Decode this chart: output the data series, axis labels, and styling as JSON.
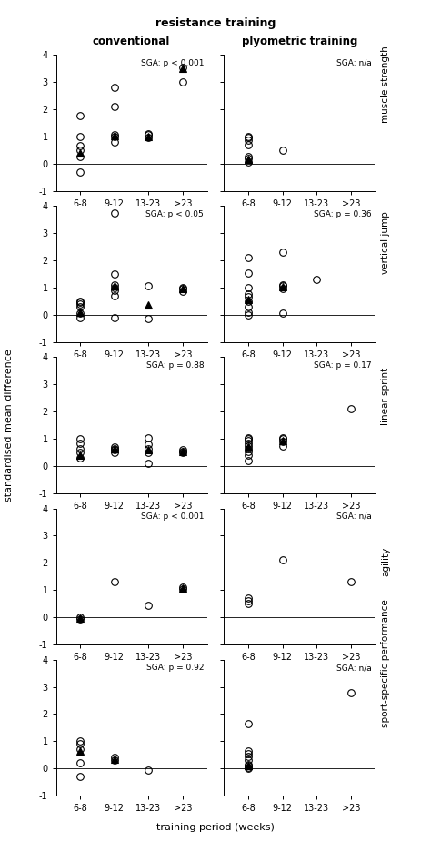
{
  "title_top": "resistance training",
  "col_labels": [
    "conventional",
    "plyometric training"
  ],
  "xlabel": "training period (weeks)",
  "ylabel": "standardised mean difference",
  "x_ticks": [
    "6-8",
    "9-12",
    "13-23",
    ">23"
  ],
  "x_positions": [
    1,
    2,
    3,
    4
  ],
  "ylim": [
    -1,
    4
  ],
  "yticks": [
    -1,
    0,
    1,
    2,
    3,
    4
  ],
  "sga_labels": [
    [
      "SGA: p < 0.001",
      "SGA: n/a"
    ],
    [
      "SGA: p < 0.05",
      "SGA: p = 0.36"
    ],
    [
      "SGA: p = 0.88",
      "SGA: p = 0.17"
    ],
    [
      "SGA: p < 0.001",
      "SGA: n/a"
    ],
    [
      "SGA: p = 0.92",
      "SGA: n/a"
    ]
  ],
  "row_labels": [
    "muscle strength",
    "vertical jump",
    "linear sprint",
    "agility",
    "sport-specific performance"
  ],
  "circles": {
    "muscle_strength_conv": {
      "6-8": [
        -0.3,
        0.25,
        0.5,
        0.65,
        1.0,
        1.75
      ],
      "9-12": [
        0.8,
        1.0,
        1.05,
        2.1,
        2.8
      ],
      "13-23": [
        0.95,
        1.05,
        1.1
      ],
      ">23": [
        3.0,
        3.55
      ]
    },
    "muscle_strength_plyo": {
      "6-8": [
        0.05,
        0.2,
        0.25,
        0.7,
        0.85,
        0.95,
        1.0
      ],
      "9-12": [
        0.5
      ],
      "13-23": [],
      ">23": []
    },
    "vertical_jump_conv": {
      "6-8": [
        -0.1,
        0.05,
        0.3,
        0.4,
        0.45,
        0.5
      ],
      "9-12": [
        -0.1,
        0.7,
        0.9,
        1.0,
        1.1,
        1.5,
        3.75
      ],
      "13-23": [
        -0.15,
        1.05
      ],
      ">23": [
        0.85,
        0.95,
        1.0
      ]
    },
    "vertical_jump_plyo": {
      "6-8": [
        0.0,
        0.1,
        0.3,
        0.5,
        0.65,
        0.75,
        1.0,
        1.55,
        2.1
      ],
      "9-12": [
        0.05,
        0.95,
        1.05,
        1.1,
        2.3
      ],
      "13-23": [
        1.3
      ],
      ">23": []
    },
    "linear_sprint_conv": {
      "6-8": [
        0.3,
        0.5,
        0.65,
        0.85,
        1.0
      ],
      "9-12": [
        0.5,
        0.6,
        0.65,
        0.7
      ],
      "13-23": [
        0.1,
        0.5,
        0.65,
        0.8,
        1.05
      ],
      ">23": [
        0.5,
        0.55,
        0.6
      ]
    },
    "linear_sprint_plyo": {
      "6-8": [
        0.2,
        0.4,
        0.55,
        0.65,
        0.75,
        0.85,
        0.95,
        1.0,
        1.05
      ],
      "9-12": [
        0.75,
        0.9,
        1.0,
        1.05
      ],
      "13-23": [],
      ">23": [
        2.1
      ]
    },
    "agility_conv": {
      "6-8": [
        -0.05,
        0.0
      ],
      "9-12": [
        1.3
      ],
      "13-23": [
        0.45
      ],
      ">23": [
        1.05,
        1.1
      ]
    },
    "agility_plyo": {
      "6-8": [
        0.5,
        0.6,
        0.7
      ],
      "9-12": [
        2.1
      ],
      "13-23": [],
      ">23": [
        1.3
      ]
    },
    "sport_conv": {
      "6-8": [
        -0.3,
        0.2,
        0.7,
        0.9,
        1.0
      ],
      "9-12": [
        0.3,
        0.4
      ],
      "13-23": [
        -0.05
      ],
      ">23": []
    },
    "sport_plyo": {
      "6-8": [
        0.0,
        0.05,
        0.1,
        0.15,
        0.3,
        0.45,
        0.55,
        0.65,
        1.65
      ],
      "9-12": [],
      "13-23": [],
      ">23": [
        2.8
      ]
    }
  },
  "triangles": {
    "muscle_strength_conv": {
      "6-8": [
        0.4
      ],
      "9-12": [
        1.02
      ],
      "13-23": [
        1.0
      ],
      ">23": [
        3.5
      ]
    },
    "muscle_strength_plyo": {
      "6-8": [
        0.15
      ],
      "9-12": [],
      "13-23": [],
      ">23": []
    },
    "vertical_jump_conv": {
      "6-8": [
        0.1
      ],
      "9-12": [
        1.05
      ],
      "13-23": [
        0.35
      ],
      ">23": [
        0.95
      ]
    },
    "vertical_jump_plyo": {
      "6-8": [
        0.55
      ],
      "9-12": [
        1.02
      ],
      "13-23": [],
      ">23": []
    },
    "linear_sprint_conv": {
      "6-8": [
        0.4
      ],
      "9-12": [
        0.62
      ],
      "13-23": [
        0.6
      ],
      ">23": [
        0.52
      ]
    },
    "linear_sprint_plyo": {
      "6-8": [
        0.7
      ],
      "9-12": [
        0.95
      ],
      "13-23": [],
      ">23": []
    },
    "agility_conv": {
      "6-8": [
        -0.02
      ],
      "9-12": [],
      "13-23": [],
      ">23": [
        1.08
      ]
    },
    "agility_plyo": {
      "6-8": [],
      "9-12": [],
      "13-23": [],
      ">23": []
    },
    "sport_conv": {
      "6-8": [
        0.65
      ],
      "9-12": [
        0.35
      ],
      "13-23": [],
      ">23": []
    },
    "sport_plyo": {
      "6-8": [
        0.12
      ],
      "9-12": [],
      "13-23": [],
      ">23": []
    }
  }
}
